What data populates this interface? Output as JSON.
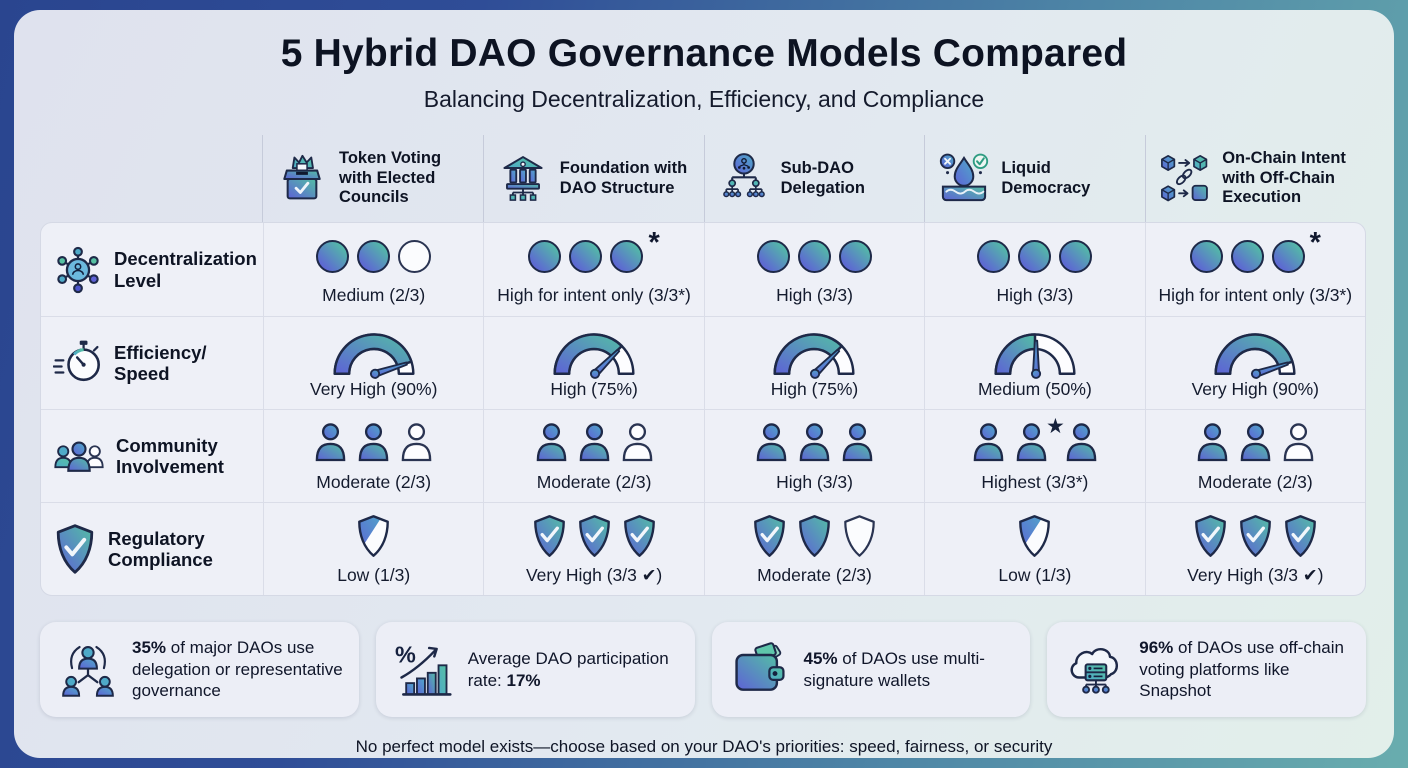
{
  "page": {
    "title": "5 Hybrid DAO Governance Models Compared",
    "subtitle": "Balancing Decentralization, Efficiency, and Compliance",
    "footer": "No perfect model exists—choose based on your DAO's priorities: speed, fairness, or security"
  },
  "colors": {
    "accent_indigo": "#5E62D6",
    "accent_teal": "#56C1A2",
    "accent_blue": "#4FAAC8",
    "outline_navy": "#1E2948",
    "page_gradient_left": "#2A458F",
    "page_gradient_right": "#69ADAE"
  },
  "table": {
    "models": [
      {
        "id": "token-voting",
        "label": "Token Voting\nwith Elected\nCouncils",
        "icon": "ballot-box-icon"
      },
      {
        "id": "foundation",
        "label": "Foundation with\nDAO Structure",
        "icon": "bank-icon"
      },
      {
        "id": "sub-dao",
        "label": "Sub-DAO\nDelegation",
        "icon": "hierarchy-icon"
      },
      {
        "id": "liquid-democracy",
        "label": "Liquid\nDemocracy",
        "icon": "droplet-icon"
      },
      {
        "id": "on-chain-intent",
        "label": "On-Chain Intent\nwith Off-Chain\nExecution",
        "icon": "cubes-icon"
      }
    ],
    "criteria": [
      {
        "id": "decentralization",
        "label": "Decentralization\nLevel",
        "icon": "network-icon",
        "glyph": "circles"
      },
      {
        "id": "efficiency",
        "label": "Efficiency/\nSpeed",
        "icon": "stopwatch-icon",
        "glyph": "gauge"
      },
      {
        "id": "community",
        "label": "Community\nInvolvement",
        "icon": "people-icon",
        "glyph": "people"
      },
      {
        "id": "compliance",
        "label": "Regulatory\nCompliance",
        "icon": "shield-icon",
        "glyph": "shields"
      }
    ],
    "cells": [
      [
        {
          "filled": 2,
          "total": 3,
          "label": "Medium (2/3)"
        },
        {
          "filled": 3,
          "total": 3,
          "asterisk": true,
          "label": "High for intent only (3/3*)"
        },
        {
          "filled": 3,
          "total": 3,
          "label": "High (3/3)"
        },
        {
          "filled": 3,
          "total": 3,
          "label": "High (3/3)"
        },
        {
          "filled": 3,
          "total": 3,
          "asterisk": true,
          "label": "High for intent only (3/3*)"
        }
      ],
      [
        {
          "pct": 90,
          "label": "Very High (90%)"
        },
        {
          "pct": 75,
          "label": "High (75%)"
        },
        {
          "pct": 75,
          "label": "High (75%)"
        },
        {
          "pct": 50,
          "label": "Medium (50%)"
        },
        {
          "pct": 90,
          "label": "Very High (90%)"
        }
      ],
      [
        {
          "filled": 2,
          "total": 3,
          "label": "Moderate (2/3)"
        },
        {
          "filled": 2,
          "total": 3,
          "label": "Moderate (2/3)"
        },
        {
          "filled": 3,
          "total": 3,
          "label": "High (3/3)"
        },
        {
          "filled": 3,
          "total": 3,
          "star": true,
          "label": "Highest (3/3*)"
        },
        {
          "filled": 2,
          "total": 3,
          "label": "Moderate (2/3)"
        }
      ],
      [
        {
          "shields": [
            "half"
          ],
          "label": "Low (1/3)"
        },
        {
          "shields": [
            "check",
            "check",
            "check"
          ],
          "label": "Very High (3/3 ✔)"
        },
        {
          "shields": [
            "check",
            "filled",
            "outline"
          ],
          "label": "Moderate (2/3)"
        },
        {
          "shields": [
            "half"
          ],
          "label": "Low (1/3)"
        },
        {
          "shields": [
            "check",
            "check",
            "check"
          ],
          "label": "Very High (3/3 ✔)"
        }
      ]
    ]
  },
  "stats": [
    {
      "icon": "delegation-icon",
      "segments": [
        {
          "text": "35%",
          "bold": true
        },
        {
          "text": " of major DAOs use delegation or representative governance",
          "bold": false
        }
      ]
    },
    {
      "icon": "growth-chart-icon",
      "segments": [
        {
          "text": "Average DAO participation rate: ",
          "bold": false
        },
        {
          "text": "17%",
          "bold": true
        }
      ]
    },
    {
      "icon": "wallet-icon",
      "segments": [
        {
          "text": "45%",
          "bold": true
        },
        {
          "text": " of DAOs use multi-signature wallets",
          "bold": false
        }
      ]
    },
    {
      "icon": "cloud-server-icon",
      "segments": [
        {
          "text": "96%",
          "bold": true
        },
        {
          "text": " of DAOs use off-chain voting platforms like Snapshot",
          "bold": false
        }
      ]
    }
  ]
}
